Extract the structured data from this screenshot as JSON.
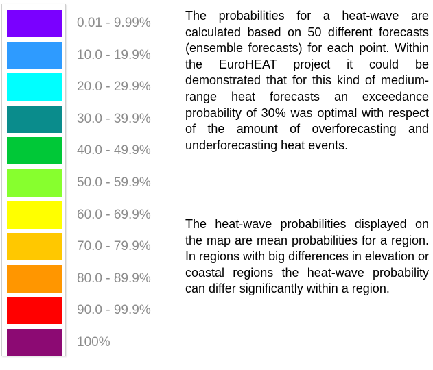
{
  "legend": {
    "items": [
      {
        "label": "0.01 - 9.99%",
        "color": "#7A00FF"
      },
      {
        "label": "10.0 - 19.9%",
        "color": "#2E9BFF"
      },
      {
        "label": "20.0 - 29.9%",
        "color": "#00FFFF"
      },
      {
        "label": "30.0 - 39.9%",
        "color": "#0A8C8C"
      },
      {
        "label": "40.0 - 49.9%",
        "color": "#00C837"
      },
      {
        "label": "50.0 - 59.9%",
        "color": "#87FF2E"
      },
      {
        "label": "60.0 - 69.9%",
        "color": "#FFFF00"
      },
      {
        "label": "70.0 - 79.9%",
        "color": "#FFC800"
      },
      {
        "label": "80.0 - 89.9%",
        "color": "#FF9600"
      },
      {
        "label": "90.0 - 99.9%",
        "color": "#FF0000"
      },
      {
        "label": "100%",
        "color": "#8C0A73"
      }
    ]
  },
  "description": {
    "paragraph1": "The probabilities for a heat-wave are calculated based on 50 different forecasts (ensemble forecasts) for each point. Within the EuroHEAT project it could be demonstrated that for this kind of medium-range heat forecasts an exceedance probability of 30% was optimal with respect of the amount of overforecasting and underforecasting heat events.",
    "paragraph2": "The heat-wave probabilities displayed on the map are mean probabilities for a region. In regions with big differences in elevation or coastal regions the heat-wave probability can differ significantly within a region."
  }
}
